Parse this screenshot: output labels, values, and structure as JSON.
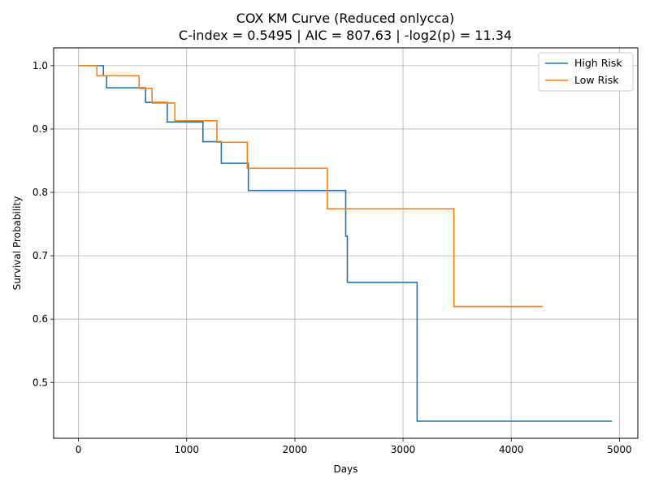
{
  "chart_data": {
    "type": "line",
    "step": true,
    "title_line1": "COX KM Curve (Reduced onlycca)",
    "title_line2": "C-index = 0.5495 | AIC = 807.63 | -log2(p) = 11.34",
    "xlabel": "Days",
    "ylabel": "Survival Probability",
    "xlim": [
      -230,
      5170
    ],
    "ylim": [
      0.412,
      1.028
    ],
    "xticks": [
      0,
      1000,
      2000,
      3000,
      4000,
      5000
    ],
    "yticks": [
      0.5,
      0.6,
      0.7,
      0.8,
      0.9,
      1.0
    ],
    "xtick_labels": [
      "0",
      "1000",
      "2000",
      "3000",
      "4000",
      "5000"
    ],
    "ytick_labels": [
      "0.5",
      "0.6",
      "0.7",
      "0.8",
      "0.9",
      "1.0"
    ],
    "grid": true,
    "legend_position": "top-right",
    "series": [
      {
        "name": "High Risk",
        "color": "#1f77b4",
        "x": [
          0,
          230,
          260,
          620,
          820,
          1150,
          1320,
          1570,
          2470,
          2485,
          3130,
          4930
        ],
        "y": [
          1.0,
          0.984,
          0.965,
          0.942,
          0.911,
          0.88,
          0.846,
          0.803,
          0.731,
          0.658,
          0.439,
          0.439
        ]
      },
      {
        "name": "Low Risk",
        "color": "#ff7f0e",
        "x": [
          0,
          170,
          560,
          680,
          890,
          1280,
          1560,
          2300,
          3470,
          4290
        ],
        "y": [
          1.0,
          0.984,
          0.964,
          0.941,
          0.913,
          0.879,
          0.838,
          0.774,
          0.62,
          0.62
        ]
      }
    ]
  }
}
